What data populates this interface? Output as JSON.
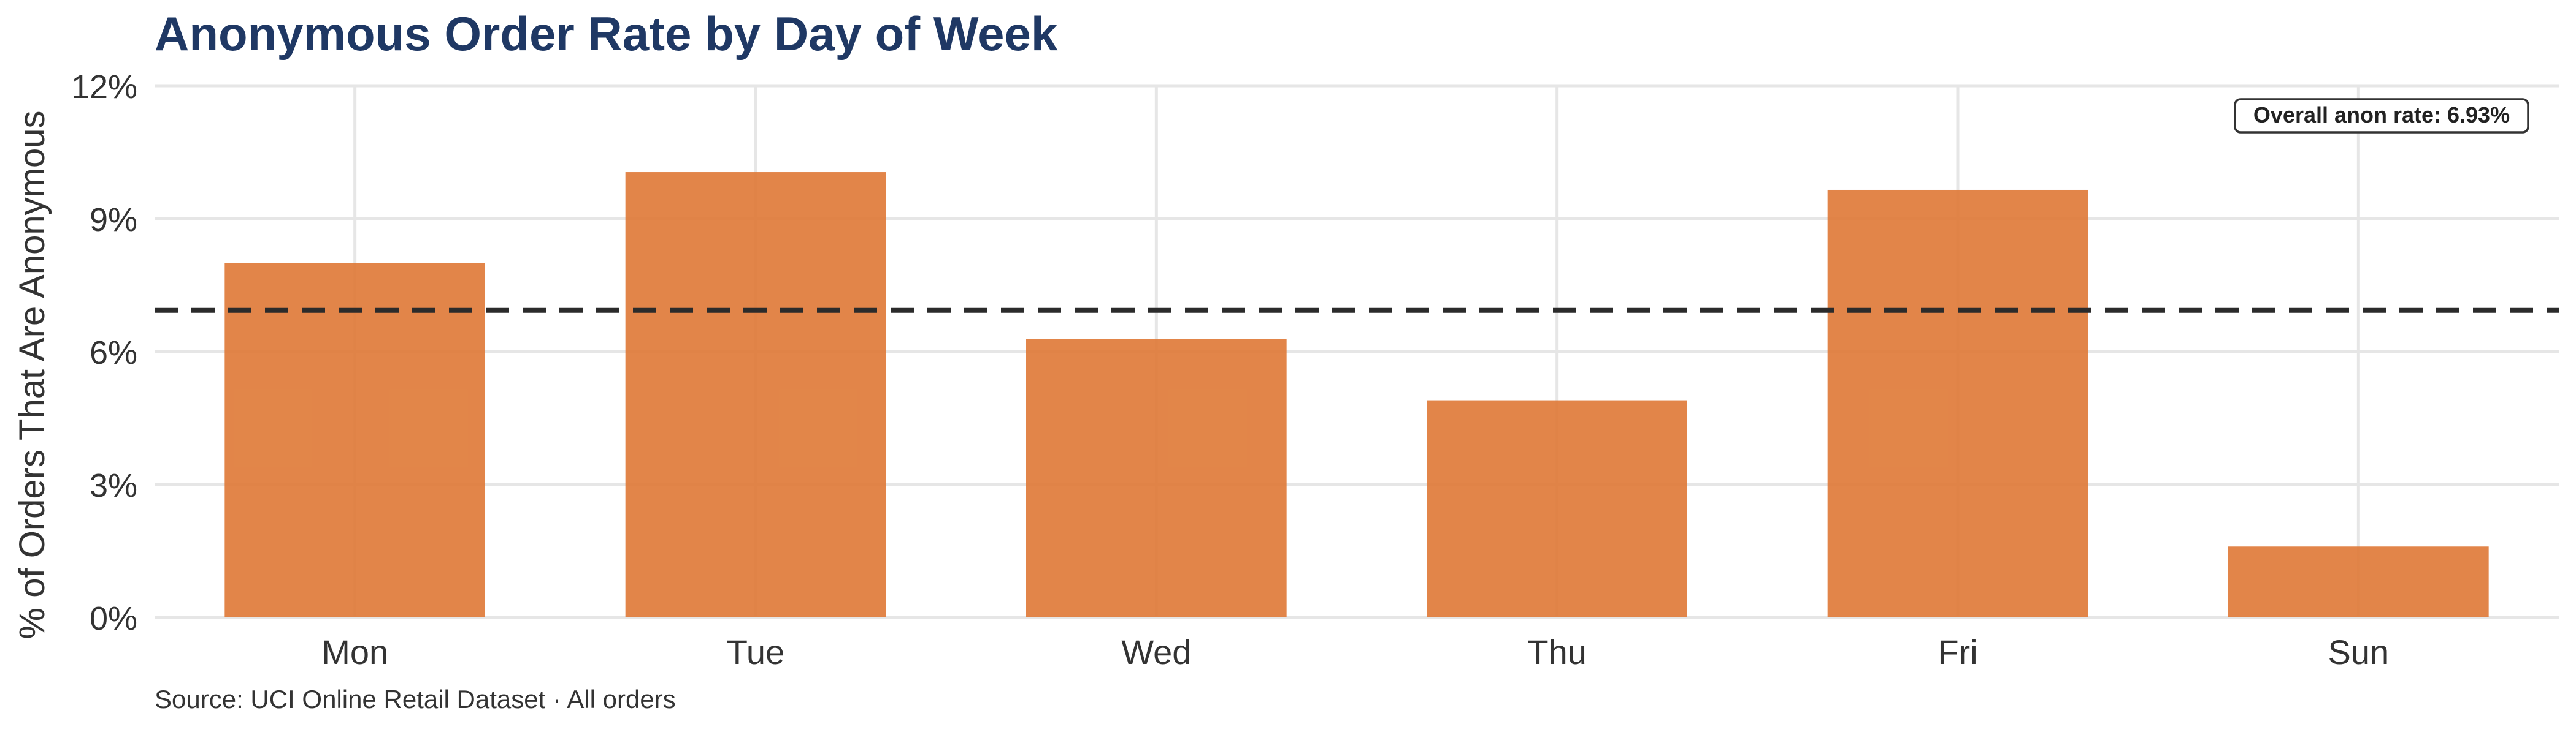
{
  "chart_data": {
    "type": "bar",
    "title": "Anonymous Order Rate by Day of Week",
    "ylabel": "% of Orders That Are Anonymous",
    "xlabel": "",
    "categories": [
      "Mon",
      "Tue",
      "Wed",
      "Thu",
      "Fri",
      "Sun"
    ],
    "values": [
      8.0,
      10.05,
      6.28,
      4.9,
      9.65,
      1.6
    ],
    "ylim": [
      0,
      12
    ],
    "y_ticks": [
      0,
      3,
      6,
      9,
      12
    ],
    "y_tick_labels": [
      "0%",
      "3%",
      "6%",
      "9%",
      "12%"
    ],
    "grid": true,
    "reference_line": {
      "value": 6.93,
      "style": "dashed",
      "label": "Overall anon rate: 6.93%",
      "label_placement": "top-right"
    },
    "bar_color": "#e07b39",
    "reference_line_color": "#2b2b2b",
    "title_color": "#1f3864",
    "caption": "Source: UCI Online Retail Dataset · All orders"
  }
}
